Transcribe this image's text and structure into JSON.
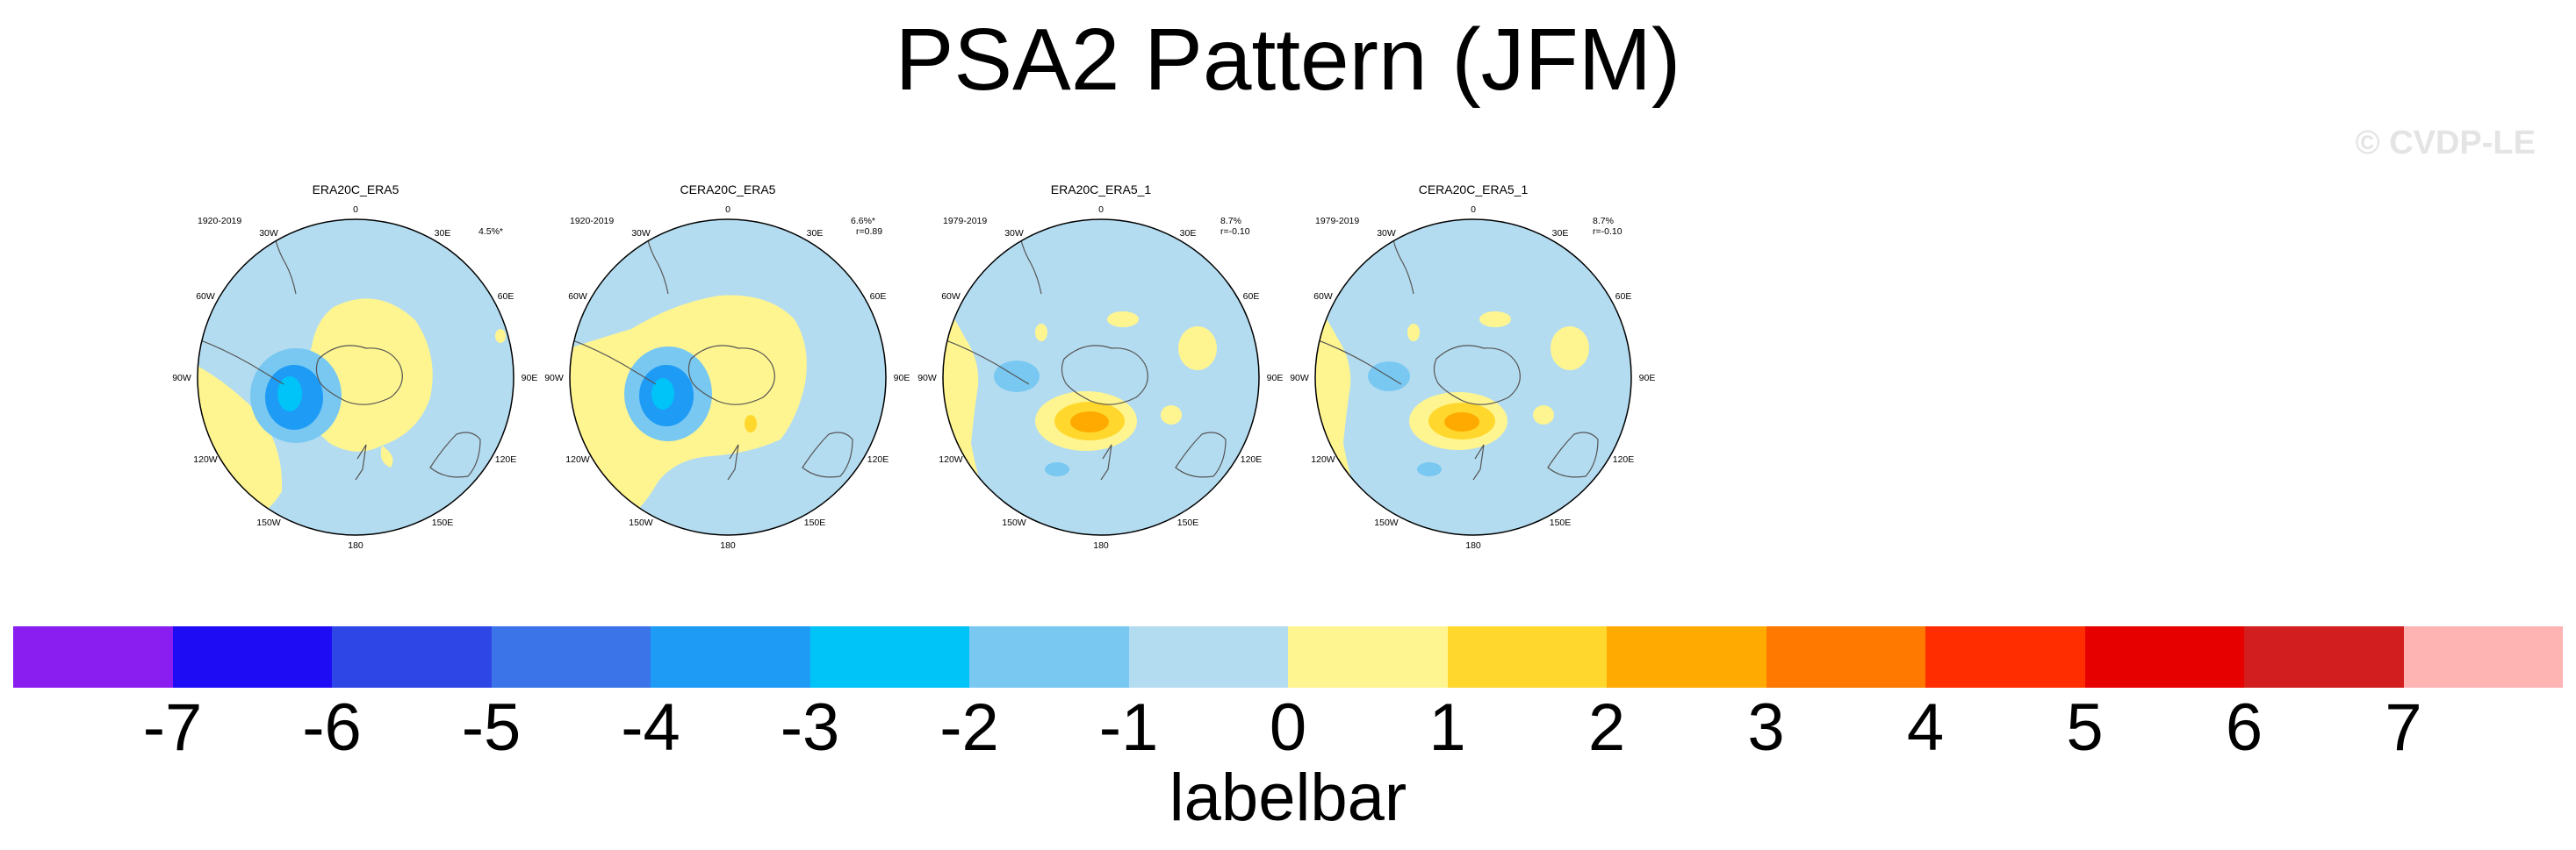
{
  "title": "PSA2 Pattern (JFM)",
  "watermark": "© CVDP-LE",
  "panels": [
    {
      "title": "ERA20C_ERA5",
      "period": "1920-2019",
      "stat1": "4.5%*",
      "stat2": ""
    },
    {
      "title": "CERA20C_ERA5",
      "period": "1920-2019",
      "stat1": "6.6%*",
      "stat2": "r=0.89"
    },
    {
      "title": "ERA20C_ERA5_1",
      "period": "1979-2019",
      "stat1": "8.7%",
      "stat2": "r=-0.10"
    },
    {
      "title": "CERA20C_ERA5_1",
      "period": "1979-2019",
      "stat1": "8.7%",
      "stat2": "r=-0.10"
    }
  ],
  "longitude_labels": [
    "0",
    "30E",
    "60E",
    "90E",
    "120E",
    "150E",
    "180",
    "150W",
    "120W",
    "90W",
    "60W",
    "30W"
  ],
  "colorbar": {
    "title": "labelbar",
    "ticks": [
      "-7",
      "-6",
      "-5",
      "-4",
      "-3",
      "-2",
      "-1",
      "0",
      "1",
      "2",
      "3",
      "4",
      "5",
      "6",
      "7"
    ],
    "colors": [
      "#8a1ef0",
      "#1e0cf5",
      "#2f46e6",
      "#3a74e8",
      "#1e9bf5",
      "#00c3f8",
      "#78c8f2",
      "#b4dcf0",
      "#fff590",
      "#ffd72d",
      "#ffaa00",
      "#ff7800",
      "#ff2d00",
      "#e60000",
      "#d21e1e",
      "#ffb4b4"
    ]
  }
}
